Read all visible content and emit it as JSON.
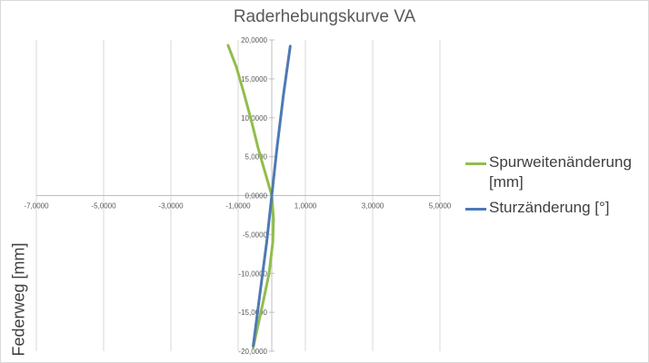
{
  "chart_data": {
    "type": "scatter",
    "title": "Raderhebungskurve VA",
    "xlabel": "",
    "ylabel": "Federweg [mm]",
    "xlim": [
      -7,
      5
    ],
    "ylim": [
      -20,
      20
    ],
    "x_ticks": [
      -7,
      -5,
      -3,
      -1,
      1,
      3,
      5
    ],
    "x_tick_labels": [
      "-7,0000",
      "-5,0000",
      "-3,0000",
      "-1,0000",
      "1,0000",
      "3,0000",
      "5,0000"
    ],
    "y_ticks": [
      -20,
      -15,
      -10,
      -5,
      0,
      5,
      10,
      15,
      20
    ],
    "y_tick_labels": [
      "-20,0000",
      "-15,0000",
      "-10,0000",
      "-5,0000",
      "0,0000",
      "5,0000",
      "10,0000",
      "15,0000",
      "20,0000"
    ],
    "gridlines": "vertical",
    "legend_position": "right",
    "series": [
      {
        "name": "Spurweitenänderung [mm]",
        "color": "#92bd4d",
        "points": [
          [
            -1.3,
            19.3
          ],
          [
            -1.05,
            16.5
          ],
          [
            -0.82,
            13.0
          ],
          [
            -0.6,
            9.5
          ],
          [
            -0.4,
            6.0
          ],
          [
            -0.2,
            3.0
          ],
          [
            0.0,
            0.0
          ],
          [
            0.05,
            -3.0
          ],
          [
            0.03,
            -6.0
          ],
          [
            -0.08,
            -10.0
          ],
          [
            -0.25,
            -13.5
          ],
          [
            -0.4,
            -16.5
          ],
          [
            -0.55,
            -19.5
          ]
        ]
      },
      {
        "name": "Sturzänderung [°]",
        "color": "#4e79b4",
        "points": [
          [
            0.55,
            19.2
          ],
          [
            0.35,
            13.0
          ],
          [
            0.15,
            6.0
          ],
          [
            0.0,
            0.0
          ],
          [
            -0.15,
            -6.0
          ],
          [
            -0.35,
            -12.5
          ],
          [
            -0.55,
            -19.3
          ]
        ]
      }
    ]
  }
}
